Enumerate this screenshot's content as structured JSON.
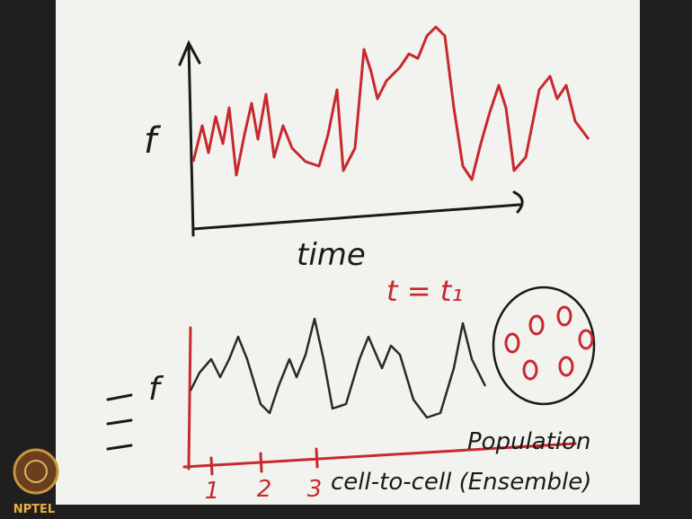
{
  "top_plot": {
    "y_label": "f",
    "x_label": "time"
  },
  "annotation": "t = t₁",
  "bottom_plot": {
    "y_label": "f",
    "x_ticks": [
      "1",
      "2",
      "3"
    ],
    "x_label": "cell-to-cell (Ensemble)",
    "population_label": "Population"
  },
  "logo": "NPTEL"
}
